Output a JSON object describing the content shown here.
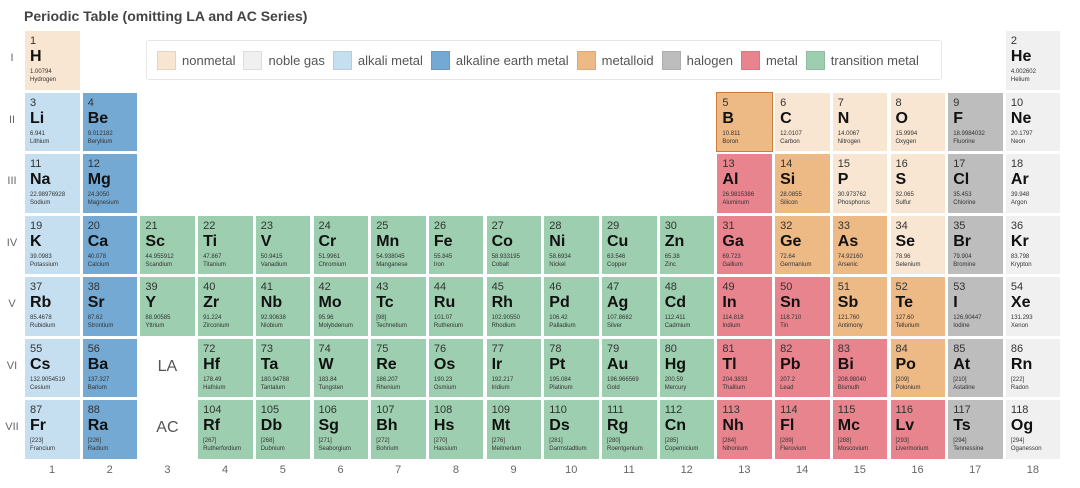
{
  "chart_data": {
    "type": "table",
    "title": "Periodic Table (omitting LA and AC Series)",
    "legend": {
      "placement": "top-center",
      "entries": [
        {
          "key": "nonmetal",
          "label": "nonmetal"
        },
        {
          "key": "noble",
          "label": "noble gas"
        },
        {
          "key": "alkali",
          "label": "alkali metal"
        },
        {
          "key": "alkaline",
          "label": "alkaline earth metal"
        },
        {
          "key": "metalloid",
          "label": "metalloid"
        },
        {
          "key": "halogen",
          "label": "halogen"
        },
        {
          "key": "metal",
          "label": "metal"
        },
        {
          "key": "transition",
          "label": "transition metal"
        }
      ]
    },
    "colors": {
      "nonmetal": "#f8e6d3",
      "noble": "#f0f0f0",
      "alkali": "#c6dff0",
      "alkaline": "#74a9d3",
      "metalloid": "#edb985",
      "halogen": "#bdbdbd",
      "metal": "#e8848e",
      "transition": "#9dceaf"
    },
    "row_labels": [
      "I",
      "II",
      "III",
      "IV",
      "V",
      "VI",
      "VII"
    ],
    "column_labels": [
      "1",
      "2",
      "3",
      "4",
      "5",
      "6",
      "7",
      "8",
      "9",
      "10",
      "11",
      "12",
      "13",
      "14",
      "15",
      "16",
      "17",
      "18"
    ],
    "series_placeholders": [
      {
        "row": 6,
        "col": 3,
        "label": "LA"
      },
      {
        "row": 7,
        "col": 3,
        "label": "AC"
      }
    ],
    "elements": [
      {
        "n": "1",
        "s": "H",
        "m": "1.00794",
        "name": "Hydrogen",
        "cat": "nonmetal",
        "row": 1,
        "col": 1
      },
      {
        "n": "2",
        "s": "He",
        "m": "4.002602",
        "name": "Helium",
        "cat": "noble",
        "row": 1,
        "col": 18
      },
      {
        "n": "3",
        "s": "Li",
        "m": "6.941",
        "name": "Lithium",
        "cat": "alkali",
        "row": 2,
        "col": 1
      },
      {
        "n": "4",
        "s": "Be",
        "m": "9.012182",
        "name": "Beryllium",
        "cat": "alkaline",
        "row": 2,
        "col": 2
      },
      {
        "n": "5",
        "s": "B",
        "m": "10.811",
        "name": "Boron",
        "cat": "metalloid",
        "row": 2,
        "col": 13
      },
      {
        "n": "6",
        "s": "C",
        "m": "12.0107",
        "name": "Carbon",
        "cat": "nonmetal",
        "row": 2,
        "col": 14
      },
      {
        "n": "7",
        "s": "N",
        "m": "14.0067",
        "name": "Nitrogen",
        "cat": "nonmetal",
        "row": 2,
        "col": 15
      },
      {
        "n": "8",
        "s": "O",
        "m": "15.9994",
        "name": "Oxygen",
        "cat": "nonmetal",
        "row": 2,
        "col": 16
      },
      {
        "n": "9",
        "s": "F",
        "m": "18.9984032",
        "name": "Fluorine",
        "cat": "halogen",
        "row": 2,
        "col": 17
      },
      {
        "n": "10",
        "s": "Ne",
        "m": "20.1797",
        "name": "Neon",
        "cat": "noble",
        "row": 2,
        "col": 18
      },
      {
        "n": "11",
        "s": "Na",
        "m": "22.98976928",
        "name": "Sodium",
        "cat": "alkali",
        "row": 3,
        "col": 1
      },
      {
        "n": "12",
        "s": "Mg",
        "m": "24.3050",
        "name": "Magnesium",
        "cat": "alkaline",
        "row": 3,
        "col": 2
      },
      {
        "n": "13",
        "s": "Al",
        "m": "26.9815386",
        "name": "Aluminum",
        "cat": "metal",
        "row": 3,
        "col": 13
      },
      {
        "n": "14",
        "s": "Si",
        "m": "28.0855",
        "name": "Silicon",
        "cat": "metalloid",
        "row": 3,
        "col": 14
      },
      {
        "n": "15",
        "s": "P",
        "m": "30.973762",
        "name": "Phosphorus",
        "cat": "nonmetal",
        "row": 3,
        "col": 15
      },
      {
        "n": "16",
        "s": "S",
        "m": "32.065",
        "name": "Sulfur",
        "cat": "nonmetal",
        "row": 3,
        "col": 16
      },
      {
        "n": "17",
        "s": "Cl",
        "m": "35.453",
        "name": "Chlorine",
        "cat": "halogen",
        "row": 3,
        "col": 17
      },
      {
        "n": "18",
        "s": "Ar",
        "m": "39.948",
        "name": "Argon",
        "cat": "noble",
        "row": 3,
        "col": 18
      },
      {
        "n": "19",
        "s": "K",
        "m": "39.0983",
        "name": "Potassium",
        "cat": "alkali",
        "row": 4,
        "col": 1
      },
      {
        "n": "20",
        "s": "Ca",
        "m": "40.078",
        "name": "Calcium",
        "cat": "alkaline",
        "row": 4,
        "col": 2
      },
      {
        "n": "21",
        "s": "Sc",
        "m": "44.955912",
        "name": "Scandium",
        "cat": "transition",
        "row": 4,
        "col": 3
      },
      {
        "n": "22",
        "s": "Ti",
        "m": "47.867",
        "name": "Titanium",
        "cat": "transition",
        "row": 4,
        "col": 4
      },
      {
        "n": "23",
        "s": "V",
        "m": "50.9415",
        "name": "Vanadium",
        "cat": "transition",
        "row": 4,
        "col": 5
      },
      {
        "n": "24",
        "s": "Cr",
        "m": "51.9961",
        "name": "Chromium",
        "cat": "transition",
        "row": 4,
        "col": 6
      },
      {
        "n": "25",
        "s": "Mn",
        "m": "54.938045",
        "name": "Manganese",
        "cat": "transition",
        "row": 4,
        "col": 7
      },
      {
        "n": "26",
        "s": "Fe",
        "m": "55.845",
        "name": "Iron",
        "cat": "transition",
        "row": 4,
        "col": 8
      },
      {
        "n": "27",
        "s": "Co",
        "m": "58.933195",
        "name": "Cobalt",
        "cat": "transition",
        "row": 4,
        "col": 9
      },
      {
        "n": "28",
        "s": "Ni",
        "m": "58.6934",
        "name": "Nickel",
        "cat": "transition",
        "row": 4,
        "col": 10
      },
      {
        "n": "29",
        "s": "Cu",
        "m": "63.546",
        "name": "Copper",
        "cat": "transition",
        "row": 4,
        "col": 11
      },
      {
        "n": "30",
        "s": "Zn",
        "m": "65.38",
        "name": "Zinc",
        "cat": "transition",
        "row": 4,
        "col": 12
      },
      {
        "n": "31",
        "s": "Ga",
        "m": "69.723",
        "name": "Gallium",
        "cat": "metal",
        "row": 4,
        "col": 13
      },
      {
        "n": "32",
        "s": "Ge",
        "m": "72.64",
        "name": "Germanium",
        "cat": "metalloid",
        "row": 4,
        "col": 14
      },
      {
        "n": "33",
        "s": "As",
        "m": "74.92160",
        "name": "Arsenic",
        "cat": "metalloid",
        "row": 4,
        "col": 15
      },
      {
        "n": "34",
        "s": "Se",
        "m": "78.96",
        "name": "Selenium",
        "cat": "nonmetal",
        "row": 4,
        "col": 16
      },
      {
        "n": "35",
        "s": "Br",
        "m": "79.904",
        "name": "Bromine",
        "cat": "halogen",
        "row": 4,
        "col": 17
      },
      {
        "n": "36",
        "s": "Kr",
        "m": "83.798",
        "name": "Krypton",
        "cat": "noble",
        "row": 4,
        "col": 18
      },
      {
        "n": "37",
        "s": "Rb",
        "m": "85.4678",
        "name": "Rubidium",
        "cat": "alkali",
        "row": 5,
        "col": 1
      },
      {
        "n": "38",
        "s": "Sr",
        "m": "87.62",
        "name": "Strontium",
        "cat": "alkaline",
        "row": 5,
        "col": 2
      },
      {
        "n": "39",
        "s": "Y",
        "m": "88.90585",
        "name": "Yttrium",
        "cat": "transition",
        "row": 5,
        "col": 3
      },
      {
        "n": "40",
        "s": "Zr",
        "m": "91.224",
        "name": "Zirconium",
        "cat": "transition",
        "row": 5,
        "col": 4
      },
      {
        "n": "41",
        "s": "Nb",
        "m": "92.90638",
        "name": "Niobium",
        "cat": "transition",
        "row": 5,
        "col": 5
      },
      {
        "n": "42",
        "s": "Mo",
        "m": "95.96",
        "name": "Molybdenum",
        "cat": "transition",
        "row": 5,
        "col": 6
      },
      {
        "n": "43",
        "s": "Tc",
        "m": "[98]",
        "name": "Technetium",
        "cat": "transition",
        "row": 5,
        "col": 7
      },
      {
        "n": "44",
        "s": "Ru",
        "m": "101.07",
        "name": "Ruthenium",
        "cat": "transition",
        "row": 5,
        "col": 8
      },
      {
        "n": "45",
        "s": "Rh",
        "m": "102.90550",
        "name": "Rhodium",
        "cat": "transition",
        "row": 5,
        "col": 9
      },
      {
        "n": "46",
        "s": "Pd",
        "m": "106.42",
        "name": "Palladium",
        "cat": "transition",
        "row": 5,
        "col": 10
      },
      {
        "n": "47",
        "s": "Ag",
        "m": "107.8682",
        "name": "Silver",
        "cat": "transition",
        "row": 5,
        "col": 11
      },
      {
        "n": "48",
        "s": "Cd",
        "m": "112.411",
        "name": "Cadmium",
        "cat": "transition",
        "row": 5,
        "col": 12
      },
      {
        "n": "49",
        "s": "In",
        "m": "114.818",
        "name": "Indium",
        "cat": "metal",
        "row": 5,
        "col": 13
      },
      {
        "n": "50",
        "s": "Sn",
        "m": "118.710",
        "name": "Tin",
        "cat": "metal",
        "row": 5,
        "col": 14
      },
      {
        "n": "51",
        "s": "Sb",
        "m": "121.760",
        "name": "Antimony",
        "cat": "metalloid",
        "row": 5,
        "col": 15
      },
      {
        "n": "52",
        "s": "Te",
        "m": "127.60",
        "name": "Tellurium",
        "cat": "metalloid",
        "row": 5,
        "col": 16
      },
      {
        "n": "53",
        "s": "I",
        "m": "126.90447",
        "name": "Iodine",
        "cat": "halogen",
        "row": 5,
        "col": 17
      },
      {
        "n": "54",
        "s": "Xe",
        "m": "131.293",
        "name": "Xenon",
        "cat": "noble",
        "row": 5,
        "col": 18
      },
      {
        "n": "55",
        "s": "Cs",
        "m": "132.9054519",
        "name": "Cesium",
        "cat": "alkali",
        "row": 6,
        "col": 1
      },
      {
        "n": "56",
        "s": "Ba",
        "m": "137.327",
        "name": "Barium",
        "cat": "alkaline",
        "row": 6,
        "col": 2
      },
      {
        "n": "72",
        "s": "Hf",
        "m": "178.49",
        "name": "Hafnium",
        "cat": "transition",
        "row": 6,
        "col": 4
      },
      {
        "n": "73",
        "s": "Ta",
        "m": "180.94788",
        "name": "Tantalum",
        "cat": "transition",
        "row": 6,
        "col": 5
      },
      {
        "n": "74",
        "s": "W",
        "m": "183.84",
        "name": "Tungsten",
        "cat": "transition",
        "row": 6,
        "col": 6
      },
      {
        "n": "75",
        "s": "Re",
        "m": "186.207",
        "name": "Rhenium",
        "cat": "transition",
        "row": 6,
        "col": 7
      },
      {
        "n": "76",
        "s": "Os",
        "m": "190.23",
        "name": "Osmium",
        "cat": "transition",
        "row": 6,
        "col": 8
      },
      {
        "n": "77",
        "s": "Ir",
        "m": "192.217",
        "name": "Iridium",
        "cat": "transition",
        "row": 6,
        "col": 9
      },
      {
        "n": "78",
        "s": "Pt",
        "m": "195.084",
        "name": "Platinum",
        "cat": "transition",
        "row": 6,
        "col": 10
      },
      {
        "n": "79",
        "s": "Au",
        "m": "196.966569",
        "name": "Gold",
        "cat": "transition",
        "row": 6,
        "col": 11
      },
      {
        "n": "80",
        "s": "Hg",
        "m": "200.59",
        "name": "Mercury",
        "cat": "transition",
        "row": 6,
        "col": 12
      },
      {
        "n": "81",
        "s": "Tl",
        "m": "204.3833",
        "name": "Thallium",
        "cat": "metal",
        "row": 6,
        "col": 13
      },
      {
        "n": "82",
        "s": "Pb",
        "m": "207.2",
        "name": "Lead",
        "cat": "metal",
        "row": 6,
        "col": 14
      },
      {
        "n": "83",
        "s": "Bi",
        "m": "208.98040",
        "name": "Bismuth",
        "cat": "metal",
        "row": 6,
        "col": 15
      },
      {
        "n": "84",
        "s": "Po",
        "m": "[209]",
        "name": "Polonium",
        "cat": "metalloid",
        "row": 6,
        "col": 16
      },
      {
        "n": "85",
        "s": "At",
        "m": "[210]",
        "name": "Astatine",
        "cat": "halogen",
        "row": 6,
        "col": 17
      },
      {
        "n": "86",
        "s": "Rn",
        "m": "[222]",
        "name": "Radon",
        "cat": "noble",
        "row": 6,
        "col": 18
      },
      {
        "n": "87",
        "s": "Fr",
        "m": "[223]",
        "name": "Francium",
        "cat": "alkali",
        "row": 7,
        "col": 1
      },
      {
        "n": "88",
        "s": "Ra",
        "m": "[226]",
        "name": "Radium",
        "cat": "alkaline",
        "row": 7,
        "col": 2
      },
      {
        "n": "104",
        "s": "Rf",
        "m": "[267]",
        "name": "Rutherfordium",
        "cat": "transition",
        "row": 7,
        "col": 4
      },
      {
        "n": "105",
        "s": "Db",
        "m": "[268]",
        "name": "Dubnium",
        "cat": "transition",
        "row": 7,
        "col": 5
      },
      {
        "n": "106",
        "s": "Sg",
        "m": "[271]",
        "name": "Seaborgium",
        "cat": "transition",
        "row": 7,
        "col": 6
      },
      {
        "n": "107",
        "s": "Bh",
        "m": "[272]",
        "name": "Bohrium",
        "cat": "transition",
        "row": 7,
        "col": 7
      },
      {
        "n": "108",
        "s": "Hs",
        "m": "[270]",
        "name": "Hassium",
        "cat": "transition",
        "row": 7,
        "col": 8
      },
      {
        "n": "109",
        "s": "Mt",
        "m": "[276]",
        "name": "Meitnerium",
        "cat": "transition",
        "row": 7,
        "col": 9
      },
      {
        "n": "110",
        "s": "Ds",
        "m": "[281]",
        "name": "Darmstadtium",
        "cat": "transition",
        "row": 7,
        "col": 10
      },
      {
        "n": "111",
        "s": "Rg",
        "m": "[280]",
        "name": "Roentgenium",
        "cat": "transition",
        "row": 7,
        "col": 11
      },
      {
        "n": "112",
        "s": "Cn",
        "m": "[285]",
        "name": "Copernicium",
        "cat": "transition",
        "row": 7,
        "col": 12
      },
      {
        "n": "113",
        "s": "Nh",
        "m": "[284]",
        "name": "Nihonium",
        "cat": "metal",
        "row": 7,
        "col": 13
      },
      {
        "n": "114",
        "s": "Fl",
        "m": "[289]",
        "name": "Flerovium",
        "cat": "metal",
        "row": 7,
        "col": 14
      },
      {
        "n": "115",
        "s": "Mc",
        "m": "[288]",
        "name": "Moscovium",
        "cat": "metal",
        "row": 7,
        "col": 15
      },
      {
        "n": "116",
        "s": "Lv",
        "m": "[293]",
        "name": "Livermorium",
        "cat": "metal",
        "row": 7,
        "col": 16
      },
      {
        "n": "117",
        "s": "Ts",
        "m": "[294]",
        "name": "Tennessine",
        "cat": "halogen",
        "row": 7,
        "col": 17
      },
      {
        "n": "118",
        "s": "Og",
        "m": "[294]",
        "name": "Oganesson",
        "cat": "noble",
        "row": 7,
        "col": 18
      }
    ],
    "highlighted_element": "5"
  }
}
